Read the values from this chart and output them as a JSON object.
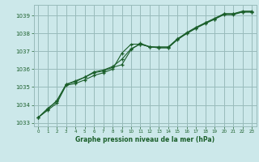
{
  "title": "Graphe pression niveau de la mer (hPa)",
  "background_color": "#cce8ea",
  "plot_bg_color": "#cce8ea",
  "grid_color": "#99bbbb",
  "line_color": "#1a5e2a",
  "marker_color": "#1a5e2a",
  "xlim": [
    -0.5,
    23.5
  ],
  "ylim": [
    1032.8,
    1039.6
  ],
  "yticks": [
    1033,
    1034,
    1035,
    1036,
    1037,
    1038,
    1039
  ],
  "xticks": [
    0,
    1,
    2,
    3,
    4,
    5,
    6,
    7,
    8,
    9,
    10,
    11,
    12,
    13,
    14,
    15,
    16,
    17,
    18,
    19,
    20,
    21,
    22,
    23
  ],
  "series1": [
    [
      0,
      1033.3
    ],
    [
      1,
      1033.7
    ],
    [
      2,
      1034.1
    ],
    [
      3,
      1035.1
    ],
    [
      4,
      1035.2
    ],
    [
      5,
      1035.4
    ],
    [
      6,
      1035.65
    ],
    [
      7,
      1035.8
    ],
    [
      8,
      1036.0
    ],
    [
      9,
      1036.9
    ],
    [
      10,
      1037.4
    ],
    [
      11,
      1037.4
    ],
    [
      12,
      1037.25
    ],
    [
      13,
      1037.2
    ],
    [
      14,
      1037.2
    ],
    [
      15,
      1037.7
    ],
    [
      16,
      1038.0
    ],
    [
      17,
      1038.3
    ],
    [
      18,
      1038.6
    ],
    [
      19,
      1038.8
    ],
    [
      20,
      1039.1
    ],
    [
      21,
      1039.1
    ],
    [
      22,
      1039.2
    ],
    [
      23,
      1039.2
    ]
  ],
  "series2": [
    [
      0,
      1033.3
    ],
    [
      1,
      1033.75
    ],
    [
      2,
      1034.25
    ],
    [
      3,
      1035.15
    ],
    [
      4,
      1035.35
    ],
    [
      5,
      1035.55
    ],
    [
      6,
      1035.8
    ],
    [
      7,
      1035.9
    ],
    [
      8,
      1036.1
    ],
    [
      9,
      1036.25
    ],
    [
      10,
      1037.1
    ],
    [
      11,
      1037.45
    ],
    [
      12,
      1037.25
    ],
    [
      13,
      1037.2
    ],
    [
      14,
      1037.2
    ],
    [
      15,
      1037.65
    ],
    [
      16,
      1038.0
    ],
    [
      17,
      1038.3
    ],
    [
      18,
      1038.55
    ],
    [
      19,
      1038.8
    ],
    [
      20,
      1039.05
    ],
    [
      21,
      1039.05
    ],
    [
      22,
      1039.2
    ],
    [
      23,
      1039.2
    ]
  ],
  "series3": [
    [
      0,
      1033.3
    ],
    [
      1,
      1033.8
    ],
    [
      2,
      1034.2
    ],
    [
      3,
      1035.15
    ],
    [
      4,
      1035.3
    ],
    [
      5,
      1035.55
    ],
    [
      6,
      1035.85
    ],
    [
      7,
      1035.95
    ],
    [
      8,
      1036.15
    ],
    [
      9,
      1036.55
    ],
    [
      10,
      1037.15
    ],
    [
      11,
      1037.4
    ],
    [
      12,
      1037.25
    ],
    [
      13,
      1037.25
    ],
    [
      14,
      1037.25
    ],
    [
      15,
      1037.7
    ],
    [
      16,
      1038.05
    ],
    [
      17,
      1038.35
    ],
    [
      18,
      1038.6
    ],
    [
      19,
      1038.85
    ],
    [
      20,
      1039.1
    ],
    [
      21,
      1039.1
    ],
    [
      22,
      1039.25
    ],
    [
      23,
      1039.25
    ]
  ]
}
